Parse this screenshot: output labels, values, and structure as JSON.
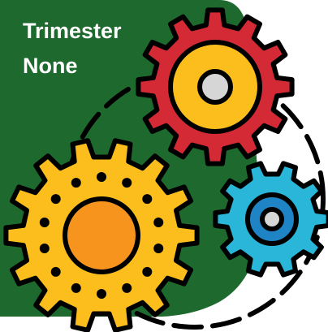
{
  "title": {
    "line1": "Trimester",
    "line2": "None"
  }
}
